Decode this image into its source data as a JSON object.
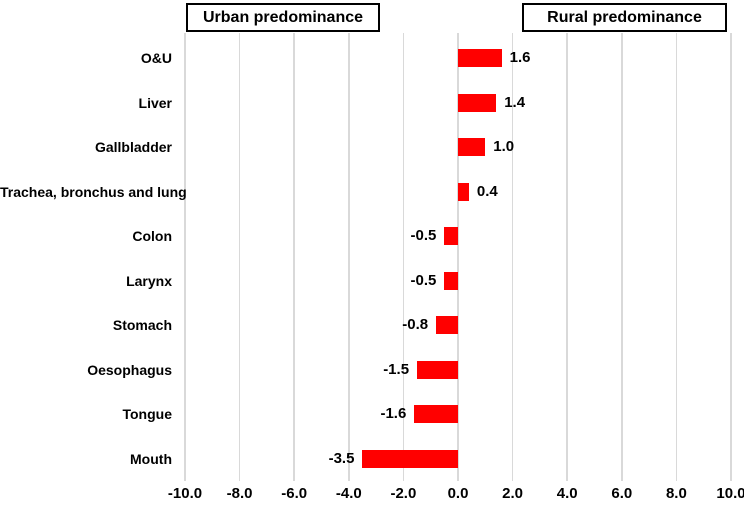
{
  "header": {
    "urban_label": "Urban predominance",
    "rural_label": "Rural predominance"
  },
  "chart_data": {
    "type": "bar",
    "orientation": "horizontal",
    "title": "",
    "xlabel": "",
    "ylabel": "",
    "categories": [
      "O&U",
      "Liver",
      "Gallbladder",
      "Trachea, bronchus and lung",
      "Colon",
      "Larynx",
      "Stomach",
      "Oesophagus",
      "Tongue",
      "Mouth"
    ],
    "values": [
      1.6,
      1.4,
      1.0,
      0.4,
      -0.5,
      -0.5,
      -0.8,
      -1.5,
      -1.6,
      -3.5
    ],
    "data_labels": [
      "1.6",
      "1.4",
      "1.0",
      "0.4",
      "-0.5",
      "-0.5",
      "-0.8",
      "-1.5",
      "-1.6",
      "-3.5"
    ],
    "xlim": [
      -10.0,
      10.0
    ],
    "x_ticks": [
      -10.0,
      -8.0,
      -6.0,
      -4.0,
      -2.0,
      0.0,
      2.0,
      4.0,
      6.0,
      8.0,
      10.0
    ],
    "x_tick_labels": [
      "-10.0",
      "-8.0",
      "-6.0",
      "-4.0",
      "-2.0",
      "0.0",
      "2.0",
      "4.0",
      "6.0",
      "8.0",
      "10.0"
    ],
    "grid": "vertical",
    "legend": "none",
    "annotations": [
      "Urban predominance",
      "Rural predominance"
    ],
    "bar_color": "#FF0000",
    "gridline_color": "#D9D9D9",
    "text_color": "#000000",
    "background_color": "#FFFFFF"
  }
}
